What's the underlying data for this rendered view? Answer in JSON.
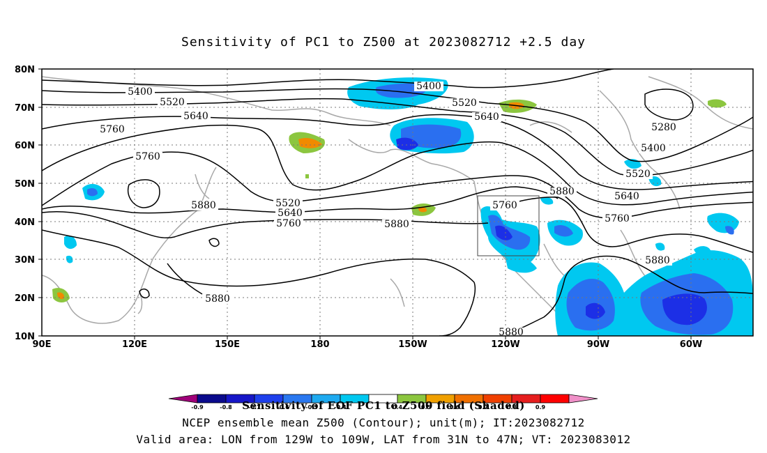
{
  "title": "Sensitivity of PC1 to Z500 at 2023082712 +2.5 day",
  "map": {
    "lat_ticks": [
      "80N",
      "70N",
      "60N",
      "50N",
      "40N",
      "30N",
      "20N",
      "10N"
    ],
    "lon_ticks": [
      "90E",
      "120E",
      "150E",
      "180",
      "150W",
      "120W",
      "90W",
      "60W"
    ],
    "contour_labels": [
      "5400",
      "5520",
      "5640",
      "5760",
      "5760",
      "5880",
      "5400",
      "5520",
      "5640",
      "5280",
      "5400",
      "5520",
      "5640",
      "5760",
      "5880",
      "5760",
      "5520",
      "5640",
      "5760",
      "5880",
      "5880",
      "5880",
      "5880"
    ],
    "colors": {
      "coast": "#a8a8a8",
      "contour": "#000000",
      "blue_dark": "#1c2fe6",
      "blue_mid": "#2a6ff0",
      "cyan": "#00c8f0",
      "green": "#8cc63f",
      "orange": "#f08a00",
      "gridline": "#777777"
    }
  },
  "colorbar": {
    "labels": [
      "-0.9",
      "-0.8",
      "-0.7",
      "-0.6",
      "-0.5",
      "-0.4",
      "0.4",
      "0.5",
      "0.6",
      "0.7",
      "0.8",
      "0.9"
    ],
    "colors": [
      "#a0007a",
      "#0a0a8c",
      "#1717c8",
      "#1e40ec",
      "#2a78f0",
      "#1eaaf0",
      "#00c8f0",
      "#ffffff",
      "#8cc63f",
      "#f0a000",
      "#f07000",
      "#f04000",
      "#e61e1e",
      "#ff0000",
      "#f090c8"
    ]
  },
  "caption": {
    "line1": "Sensitivity of EOF PC1 to Z500 field (Shaded)",
    "line2": "NCEP ensemble mean Z500 (Contour); unit(m); IT:2023082712",
    "line3": "Valid area: LON from 129W to 109W, LAT from 31N to 47N; VT: 2023083012"
  }
}
